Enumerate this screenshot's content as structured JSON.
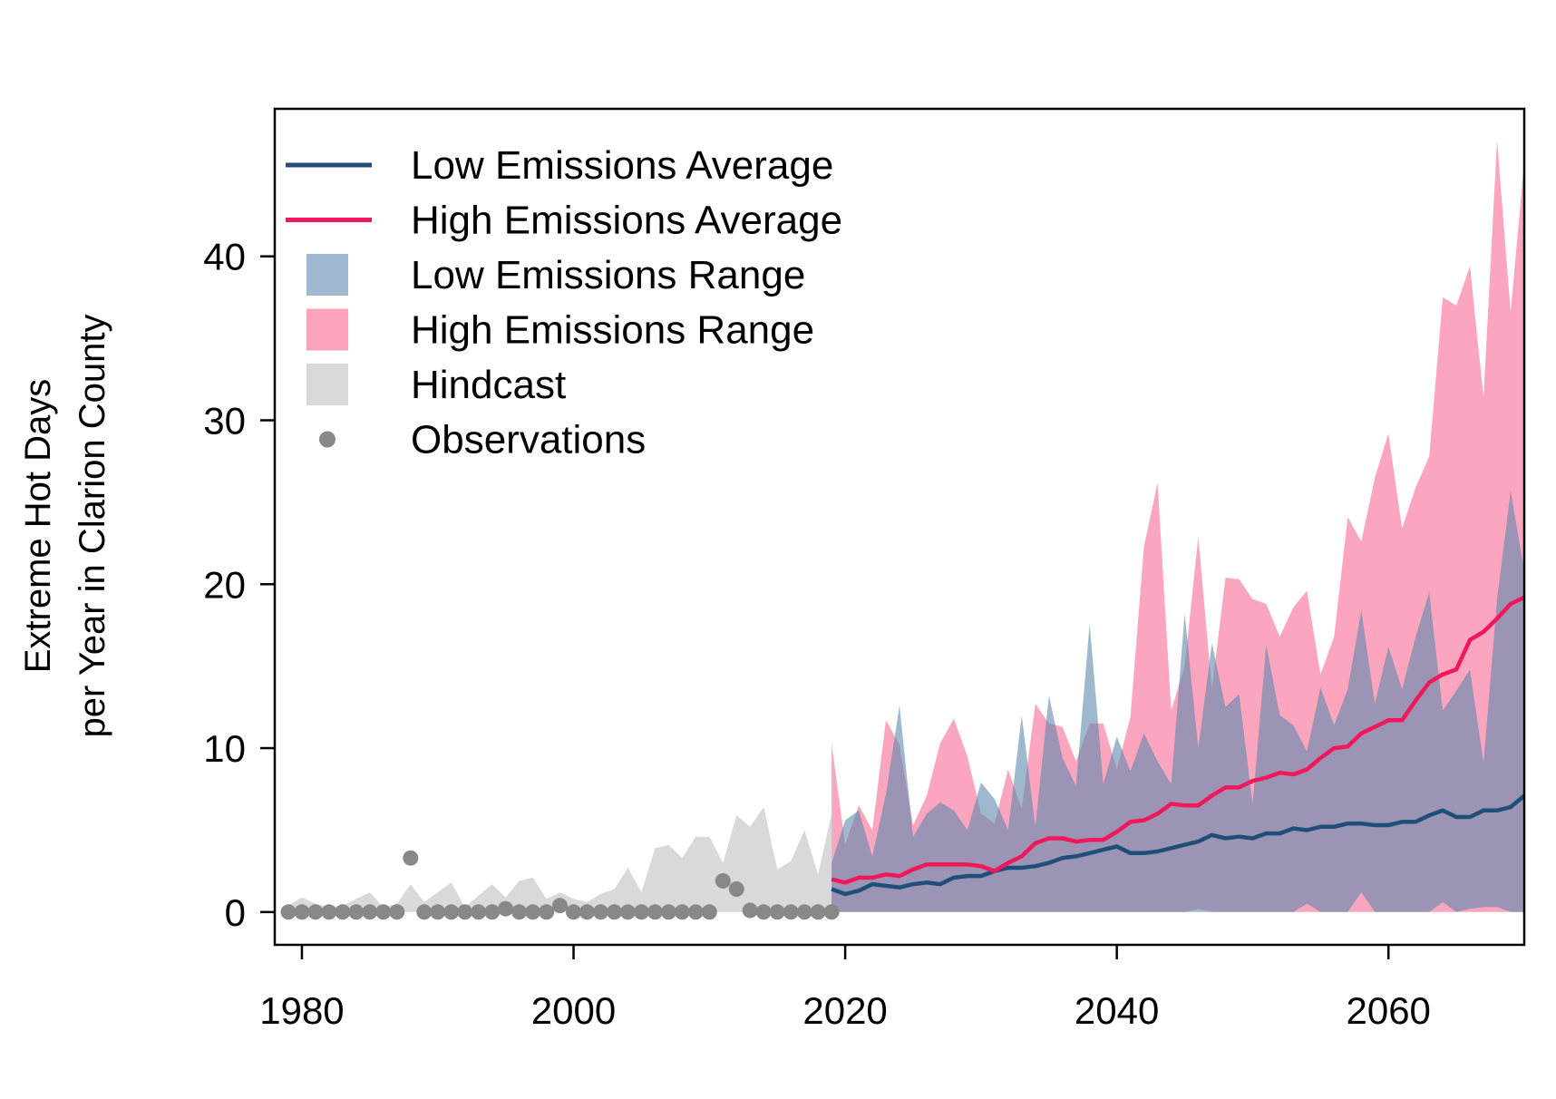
{
  "chart_data": {
    "type": "line",
    "title": "",
    "xlabel": "",
    "ylabel": "Extreme Hot Days",
    "ylabel2": "per Year in Clarion County",
    "xlim": [
      1978,
      2070
    ],
    "ylim": [
      -2,
      49
    ],
    "x_ticks": [
      1980,
      2000,
      2020,
      2040,
      2060
    ],
    "y_ticks": [
      0,
      10,
      20,
      30,
      40
    ],
    "grid": false,
    "legend_position": "top-left",
    "legend": [
      {
        "label": "Low Emissions Average",
        "kind": "line",
        "color": "#1f4e79"
      },
      {
        "label": "High Emissions Average",
        "kind": "line",
        "color": "#f0175a"
      },
      {
        "label": "Low Emissions Range",
        "kind": "box",
        "color": "#9fbad0"
      },
      {
        "label": "High Emissions Range",
        "kind": "box",
        "color": "#fba3ba"
      },
      {
        "label": "Hindcast",
        "kind": "box",
        "color": "#d9d9d9"
      },
      {
        "label": "Observations",
        "kind": "point",
        "color": "#888888"
      }
    ],
    "colors": {
      "low_line": "#1f4e79",
      "high_line": "#f0175a",
      "low_range": "#5e89ad",
      "high_range": "#f96b92",
      "overlap": "#9c84a4",
      "hindcast": "#d9d9d9",
      "obs": "#888888"
    },
    "observations": {
      "x": [
        1979,
        1980,
        1981,
        1982,
        1983,
        1984,
        1985,
        1986,
        1987,
        1988,
        1989,
        1990,
        1991,
        1992,
        1993,
        1994,
        1995,
        1996,
        1997,
        1998,
        1999,
        2000,
        2001,
        2002,
        2003,
        2004,
        2005,
        2006,
        2007,
        2008,
        2009,
        2010,
        2011,
        2012,
        2013,
        2014,
        2015,
        2016,
        2017,
        2018,
        2019
      ],
      "y": [
        0,
        0,
        0,
        0,
        0,
        0,
        0,
        0,
        0,
        3.3,
        0,
        0,
        0,
        0,
        0,
        0,
        0.2,
        0,
        0,
        0,
        0.4,
        0,
        0,
        0,
        0,
        0,
        0,
        0,
        0,
        0,
        0,
        0,
        1.9,
        1.4,
        0.1,
        0,
        0,
        0,
        0,
        0,
        0
      ]
    },
    "hindcast_range": {
      "x": [
        1979,
        1980,
        1981,
        1982,
        1983,
        1984,
        1985,
        1986,
        1987,
        1988,
        1989,
        1990,
        1991,
        1992,
        1993,
        1994,
        1995,
        1996,
        1997,
        1998,
        1999,
        2000,
        2001,
        2002,
        2003,
        2004,
        2005,
        2006,
        2007,
        2008,
        2009,
        2010,
        2011,
        2012,
        2013,
        2014,
        2015,
        2016,
        2017,
        2018,
        2019
      ],
      "upper": [
        0.4,
        0.9,
        0.5,
        0.3,
        0.4,
        0.8,
        1.2,
        0.3,
        0.5,
        1.7,
        0.6,
        1.2,
        1.8,
        0.3,
        1.0,
        1.7,
        0.9,
        1.9,
        2.1,
        0.8,
        1.2,
        0.8,
        0.6,
        1.1,
        1.4,
        2.7,
        1.2,
        3.9,
        4.1,
        3.3,
        4.6,
        4.6,
        3.0,
        5.9,
        5.2,
        6.4,
        2.6,
        3.1,
        5.0,
        2.3,
        6.0
      ],
      "lower": [
        0,
        0,
        0,
        0,
        0,
        0,
        0,
        0,
        0,
        0,
        0,
        0,
        0,
        0,
        0,
        0,
        0,
        0,
        0,
        0,
        0,
        0,
        0,
        0,
        0,
        0,
        0,
        0,
        0,
        0,
        0,
        0,
        0,
        0,
        0,
        0,
        0,
        0,
        0,
        0,
        0
      ]
    },
    "low_range": {
      "x": [
        2019,
        2020,
        2021,
        2022,
        2023,
        2024,
        2025,
        2026,
        2027,
        2028,
        2029,
        2030,
        2031,
        2032,
        2033,
        2034,
        2035,
        2036,
        2037,
        2038,
        2039,
        2040,
        2041,
        2042,
        2043,
        2044,
        2045,
        2046,
        2047,
        2048,
        2049,
        2050,
        2051,
        2052,
        2053,
        2054,
        2055,
        2056,
        2057,
        2058,
        2059,
        2060,
        2061,
        2062,
        2063,
        2064,
        2065,
        2066,
        2067,
        2068,
        2069,
        2070
      ],
      "upper": [
        3.0,
        5.6,
        6.2,
        3.4,
        7.2,
        12.6,
        4.6,
        6.0,
        6.7,
        6.2,
        5.0,
        7.9,
        6.9,
        5.0,
        12.0,
        5.2,
        13.2,
        9.4,
        7.7,
        17.6,
        7.8,
        10.7,
        8.6,
        10.9,
        9.2,
        7.8,
        18.2,
        10.0,
        16.4,
        12.5,
        13.3,
        6.6,
        16.3,
        12.0,
        11.4,
        9.8,
        13.7,
        11.4,
        13.6,
        18.4,
        12.7,
        16.2,
        13.6,
        16.8,
        19.5,
        12.3,
        13.5,
        14.8,
        9.1,
        19.1,
        25.7,
        20.8
      ],
      "lower": [
        0,
        0,
        0,
        0,
        0,
        0,
        0,
        0,
        0,
        0,
        0,
        0,
        0,
        0,
        0,
        0,
        0,
        0,
        0,
        0,
        0,
        0,
        0,
        0,
        0,
        0,
        0,
        0,
        0,
        0,
        0,
        0,
        0,
        0,
        0,
        0.5,
        0,
        0,
        0,
        1.2,
        0,
        0,
        0,
        0,
        0,
        0.6,
        0,
        0.2,
        0.3,
        0.3,
        0,
        0
      ]
    },
    "high_range": {
      "x": [
        2019,
        2020,
        2021,
        2022,
        2023,
        2024,
        2025,
        2026,
        2027,
        2028,
        2029,
        2030,
        2031,
        2032,
        2033,
        2034,
        2035,
        2036,
        2037,
        2038,
        2039,
        2040,
        2041,
        2042,
        2043,
        2044,
        2045,
        2046,
        2047,
        2048,
        2049,
        2050,
        2051,
        2052,
        2053,
        2054,
        2055,
        2056,
        2057,
        2058,
        2059,
        2060,
        2061,
        2062,
        2063,
        2064,
        2065,
        2066,
        2067,
        2068,
        2069,
        2070
      ],
      "upper": [
        10.3,
        4.1,
        6.5,
        5.0,
        11.7,
        10.2,
        5.3,
        7.1,
        10.3,
        11.8,
        9.5,
        6.0,
        5.4,
        8.7,
        6.3,
        12.7,
        11.5,
        11.3,
        9.2,
        11.5,
        11.5,
        8.7,
        11.9,
        22.3,
        26.2,
        12.3,
        15.0,
        22.9,
        13.6,
        20.4,
        20.3,
        19.1,
        18.8,
        16.8,
        18.6,
        19.6,
        14.5,
        16.8,
        24.1,
        22.6,
        26.5,
        29.2,
        23.4,
        25.9,
        27.8,
        37.5,
        37.0,
        39.4,
        31.4,
        47.1,
        36.6,
        45.8
      ],
      "lower": [
        0,
        0,
        0,
        0,
        0,
        0,
        0,
        0,
        0,
        0,
        0,
        0,
        0,
        0,
        0,
        0,
        0,
        0,
        0,
        0,
        0,
        0,
        0,
        0,
        0,
        0,
        0,
        0.2,
        0,
        0,
        0,
        0,
        0,
        0,
        0,
        0,
        0,
        0,
        0,
        0,
        0,
        0,
        0,
        0,
        0,
        0,
        0,
        0,
        0,
        0,
        0,
        0
      ]
    },
    "series": [
      {
        "name": "Low Emissions Average",
        "x": [
          2019,
          2020,
          2021,
          2022,
          2023,
          2024,
          2025,
          2026,
          2027,
          2028,
          2029,
          2030,
          2031,
          2032,
          2033,
          2034,
          2035,
          2036,
          2037,
          2038,
          2039,
          2040,
          2041,
          2042,
          2043,
          2044,
          2045,
          2046,
          2047,
          2048,
          2049,
          2050,
          2051,
          2052,
          2053,
          2054,
          2055,
          2056,
          2057,
          2058,
          2059,
          2060,
          2061,
          2062,
          2063,
          2064,
          2065,
          2066,
          2067,
          2068,
          2069,
          2070
        ],
        "values": [
          1.4,
          1.1,
          1.3,
          1.7,
          1.6,
          1.5,
          1.7,
          1.8,
          1.7,
          2.1,
          2.2,
          2.2,
          2.5,
          2.7,
          2.7,
          2.8,
          3.0,
          3.3,
          3.4,
          3.6,
          3.8,
          4.0,
          3.6,
          3.6,
          3.7,
          3.9,
          4.1,
          4.3,
          4.7,
          4.5,
          4.6,
          4.5,
          4.8,
          4.8,
          5.1,
          5.0,
          5.2,
          5.2,
          5.4,
          5.4,
          5.3,
          5.3,
          5.5,
          5.5,
          5.9,
          6.2,
          5.8,
          5.8,
          6.2,
          6.2,
          6.4,
          7.1
        ]
      },
      {
        "name": "High Emissions Average",
        "x": [
          2019,
          2020,
          2021,
          2022,
          2023,
          2024,
          2025,
          2026,
          2027,
          2028,
          2029,
          2030,
          2031,
          2032,
          2033,
          2034,
          2035,
          2036,
          2037,
          2038,
          2039,
          2040,
          2041,
          2042,
          2043,
          2044,
          2045,
          2046,
          2047,
          2048,
          2049,
          2050,
          2051,
          2052,
          2053,
          2054,
          2055,
          2056,
          2057,
          2058,
          2059,
          2060,
          2061,
          2062,
          2063,
          2064,
          2065,
          2066,
          2067,
          2068,
          2069,
          2070
        ],
        "values": [
          2.0,
          1.8,
          2.1,
          2.1,
          2.3,
          2.2,
          2.6,
          2.9,
          2.9,
          2.9,
          2.9,
          2.8,
          2.5,
          3.0,
          3.4,
          4.2,
          4.5,
          4.5,
          4.3,
          4.4,
          4.4,
          4.9,
          5.5,
          5.6,
          6.0,
          6.6,
          6.5,
          6.5,
          7.1,
          7.6,
          7.6,
          8.0,
          8.2,
          8.5,
          8.4,
          8.7,
          9.4,
          10.0,
          10.1,
          10.9,
          11.3,
          11.7,
          11.7,
          12.9,
          14.0,
          14.5,
          14.8,
          16.6,
          17.1,
          17.9,
          18.8,
          19.2
        ]
      }
    ]
  }
}
